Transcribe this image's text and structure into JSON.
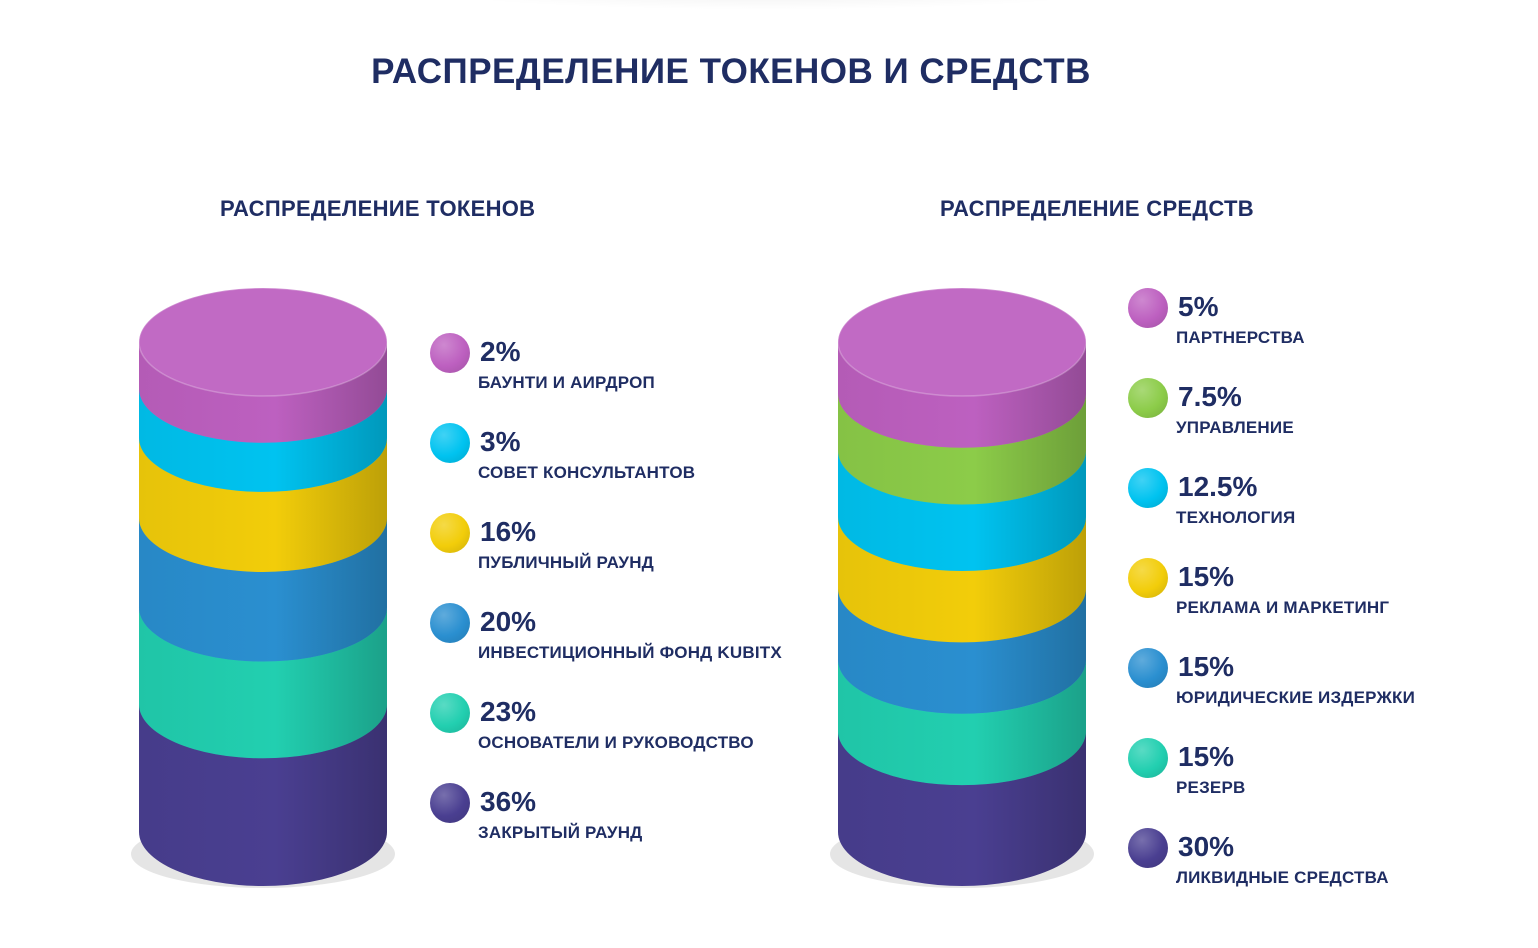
{
  "title": "РАСПРЕДЕЛЕНИЕ ТОКЕНОВ И СРЕДСТВ",
  "colors": {
    "purple": "#bd60c0",
    "cyan": "#00c3f0",
    "yellow": "#f2cd0a",
    "blue": "#2a8fd0",
    "teal": "#22cfb0",
    "indigo": "#4a3f91",
    "green": "#8ccc49",
    "title": "#1f2d63"
  },
  "chart_data": [
    {
      "type": "stacked-cylinder",
      "title": "РАСПРЕДЕЛЕНИЕ ТОКЕНОВ",
      "series": [
        {
          "name": "БАУНТИ И АИРДРОП",
          "value": 2,
          "label": "2%",
          "color": "#bd60c0"
        },
        {
          "name": "СОВЕТ КОНСУЛЬТАНТОВ",
          "value": 3,
          "label": "3%",
          "color": "#00c3f0"
        },
        {
          "name": "ПУБЛИЧНЫЙ РАУНД",
          "value": 16,
          "label": "16%",
          "color": "#f2cd0a"
        },
        {
          "name": "ИНВЕСТИЦИОННЫЙ ФОНД KUBITX",
          "value": 20,
          "label": "20%",
          "color": "#2a8fd0"
        },
        {
          "name": "ОСНОВАТЕЛИ И РУКОВОДСТВО",
          "value": 23,
          "label": "23%",
          "color": "#22cfb0"
        },
        {
          "name": "ЗАКРЫТЫЙ РАУНД",
          "value": 36,
          "label": "36%",
          "color": "#4a3f91"
        }
      ]
    },
    {
      "type": "stacked-cylinder",
      "title": "РАСПРЕДЕЛЕНИЕ СРЕДСТВ",
      "series": [
        {
          "name": "ПАРТНЕРСТВА",
          "value": 5,
          "label": "5%",
          "color": "#bd60c0"
        },
        {
          "name": "УПРАВЛЕНИЕ",
          "value": 7.5,
          "label": "7.5%",
          "color": "#8ccc49"
        },
        {
          "name": "ТЕХНОЛОГИЯ",
          "value": 12.5,
          "label": "12.5%",
          "color": "#00c3f0"
        },
        {
          "name": "РЕКЛАМА И МАРКЕТИНГ",
          "value": 15,
          "label": "15%",
          "color": "#f2cd0a"
        },
        {
          "name": "ЮРИДИЧЕСКИЕ ИЗДЕРЖКИ",
          "value": 15,
          "label": "15%",
          "color": "#2a8fd0"
        },
        {
          "name": "РЕЗЕРВ",
          "value": 15,
          "label": "15%",
          "color": "#22cfb0"
        },
        {
          "name": "ЛИКВИДНЫЕ СРЕДСТВА",
          "value": 30,
          "label": "30%",
          "color": "#4a3f91"
        }
      ]
    }
  ]
}
